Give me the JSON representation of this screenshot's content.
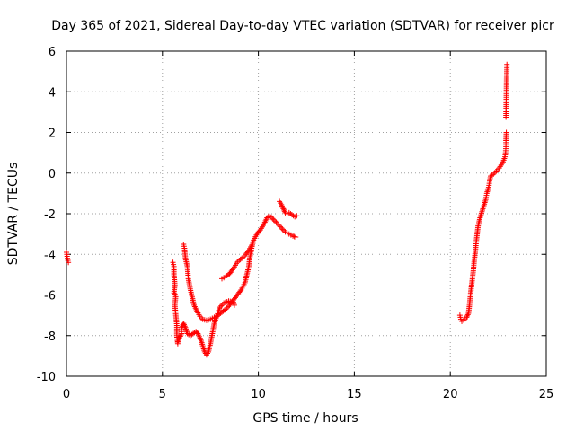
{
  "chart_data": {
    "type": "scatter",
    "title": "Day 365 of 2021, Sidereal Day-to-day VTEC variation (SDTVAR) for receiver picr",
    "xlabel": "GPS time / hours",
    "ylabel": "SDTVAR / TECUs",
    "xlim": [
      0,
      25
    ],
    "ylim": [
      -10,
      6
    ],
    "xticks": [
      0,
      5,
      10,
      15,
      20,
      25
    ],
    "yticks": [
      -10,
      -8,
      -6,
      -4,
      -2,
      0,
      2,
      4,
      6
    ],
    "grid": true,
    "marker": "+",
    "series": [
      {
        "name": "SDTVAR",
        "color": "#ff0000",
        "segments": [
          [
            [
              0.0,
              -3.9
            ],
            [
              0.05,
              -4.2
            ],
            [
              0.1,
              -4.4
            ]
          ],
          [
            [
              5.55,
              -4.4
            ],
            [
              5.6,
              -4.6
            ],
            [
              5.6,
              -5.0
            ],
            [
              5.65,
              -5.5
            ],
            [
              5.6,
              -5.9
            ],
            [
              5.7,
              -6.0
            ],
            [
              5.65,
              -6.5
            ],
            [
              5.7,
              -7.0
            ],
            [
              5.75,
              -7.5
            ],
            [
              5.75,
              -8.0
            ],
            [
              5.8,
              -8.4
            ]
          ],
          [
            [
              5.8,
              -8.3
            ],
            [
              5.9,
              -8.1
            ],
            [
              6.0,
              -7.9
            ],
            [
              6.0,
              -7.6
            ],
            [
              6.1,
              -7.4
            ],
            [
              6.2,
              -7.6
            ],
            [
              6.3,
              -7.9
            ],
            [
              6.45,
              -8.0
            ],
            [
              6.6,
              -7.9
            ],
            [
              6.75,
              -7.8
            ],
            [
              6.85,
              -7.9
            ],
            [
              7.0,
              -8.2
            ],
            [
              7.1,
              -8.5
            ],
            [
              7.2,
              -8.8
            ],
            [
              7.3,
              -8.95
            ],
            [
              7.4,
              -8.8
            ],
            [
              7.5,
              -8.4
            ],
            [
              7.6,
              -7.9
            ],
            [
              7.7,
              -7.4
            ],
            [
              7.85,
              -7.0
            ],
            [
              8.0,
              -6.6
            ],
            [
              8.2,
              -6.4
            ],
            [
              8.45,
              -6.3
            ],
            [
              8.7,
              -6.35
            ],
            [
              8.75,
              -6.5
            ]
          ],
          [
            [
              6.1,
              -3.5
            ],
            [
              6.15,
              -3.7
            ],
            [
              6.2,
              -4.2
            ],
            [
              6.3,
              -4.6
            ],
            [
              6.35,
              -5.2
            ],
            [
              6.45,
              -5.7
            ],
            [
              6.55,
              -6.1
            ],
            [
              6.65,
              -6.5
            ],
            [
              6.8,
              -6.8
            ],
            [
              6.95,
              -7.05
            ],
            [
              7.1,
              -7.2
            ],
            [
              7.3,
              -7.25
            ],
            [
              7.5,
              -7.2
            ],
            [
              7.7,
              -7.1
            ],
            [
              7.9,
              -7.0
            ],
            [
              8.1,
              -6.85
            ],
            [
              8.3,
              -6.7
            ],
            [
              8.5,
              -6.5
            ],
            [
              8.7,
              -6.25
            ],
            [
              8.9,
              -6.0
            ],
            [
              9.1,
              -5.75
            ],
            [
              9.3,
              -5.4
            ],
            [
              9.4,
              -5.0
            ],
            [
              9.5,
              -4.6
            ],
            [
              9.55,
              -4.2
            ],
            [
              9.65,
              -3.7
            ],
            [
              9.75,
              -3.3
            ],
            [
              9.9,
              -3.05
            ],
            [
              10.0,
              -2.9
            ],
            [
              10.1,
              -2.8
            ],
            [
              10.3,
              -2.5
            ],
            [
              10.45,
              -2.2
            ],
            [
              10.6,
              -2.1
            ],
            [
              10.8,
              -2.3
            ],
            [
              11.0,
              -2.5
            ],
            [
              11.2,
              -2.7
            ],
            [
              11.4,
              -2.9
            ],
            [
              11.6,
              -3.0
            ],
            [
              11.8,
              -3.1
            ],
            [
              11.95,
              -3.15
            ]
          ],
          [
            [
              8.1,
              -5.2
            ],
            [
              8.3,
              -5.1
            ],
            [
              8.5,
              -4.95
            ],
            [
              8.7,
              -4.7
            ],
            [
              8.85,
              -4.45
            ],
            [
              9.0,
              -4.3
            ],
            [
              9.2,
              -4.15
            ],
            [
              9.35,
              -4.0
            ],
            [
              9.5,
              -3.8
            ],
            [
              9.65,
              -3.55
            ]
          ],
          [
            [
              11.1,
              -1.4
            ],
            [
              11.2,
              -1.55
            ],
            [
              11.3,
              -1.75
            ],
            [
              11.4,
              -1.95
            ],
            [
              11.5,
              -2.0
            ],
            [
              11.6,
              -1.95
            ],
            [
              11.75,
              -2.05
            ],
            [
              11.9,
              -2.15
            ],
            [
              12.0,
              -2.1
            ]
          ],
          [
            [
              20.5,
              -7.0
            ],
            [
              20.55,
              -7.2
            ],
            [
              20.6,
              -7.3
            ],
            [
              20.7,
              -7.25
            ],
            [
              20.85,
              -7.1
            ],
            [
              20.95,
              -6.9
            ],
            [
              21.0,
              -6.5
            ],
            [
              21.05,
              -6.0
            ],
            [
              21.1,
              -5.6
            ],
            [
              21.15,
              -5.2
            ],
            [
              21.2,
              -4.8
            ],
            [
              21.25,
              -4.3
            ],
            [
              21.3,
              -3.9
            ],
            [
              21.35,
              -3.4
            ],
            [
              21.4,
              -3.0
            ],
            [
              21.45,
              -2.6
            ],
            [
              21.55,
              -2.2
            ],
            [
              21.65,
              -1.9
            ],
            [
              21.75,
              -1.6
            ],
            [
              21.85,
              -1.3
            ],
            [
              21.9,
              -1.0
            ],
            [
              22.0,
              -0.7
            ],
            [
              22.05,
              -0.4
            ],
            [
              22.1,
              -0.15
            ],
            [
              22.25,
              -0.05
            ],
            [
              22.4,
              0.1
            ],
            [
              22.55,
              0.25
            ],
            [
              22.65,
              0.4
            ],
            [
              22.75,
              0.55
            ],
            [
              22.85,
              0.8
            ],
            [
              22.88,
              1.0
            ],
            [
              22.9,
              1.3
            ],
            [
              22.9,
              1.6
            ],
            [
              22.92,
              2.0
            ]
          ],
          [
            [
              22.9,
              2.75
            ],
            [
              22.92,
              4.0
            ],
            [
              22.95,
              5.35
            ]
          ]
        ]
      }
    ]
  }
}
